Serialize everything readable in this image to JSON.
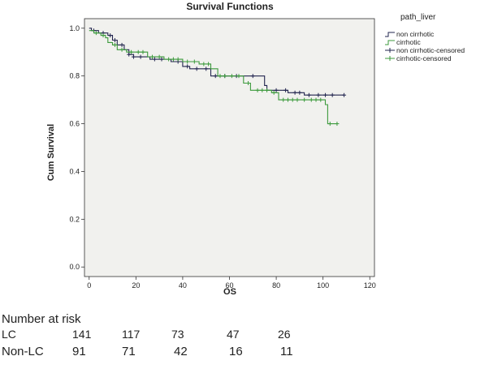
{
  "chart_data": {
    "type": "line",
    "subtype": "kaplan-meier",
    "title": "Survival Functions",
    "xlabel": "OS",
    "ylabel": "Cum Survival",
    "xlim": [
      -2,
      122
    ],
    "ylim": [
      -0.04,
      1.04
    ],
    "x_ticks": [
      0,
      20,
      40,
      60,
      80,
      100,
      120
    ],
    "y_ticks": [
      0.0,
      0.2,
      0.4,
      0.6,
      0.8,
      1.0
    ],
    "legend_title": "path_liver",
    "legend_position": "right",
    "legend": [
      {
        "label": "non cirrhotic",
        "kind": "line",
        "color": "#22254f"
      },
      {
        "label": "cirrhotic",
        "kind": "line",
        "color": "#3c9a3c"
      },
      {
        "label": "non cirrhotic-censored",
        "kind": "plus",
        "color": "#22254f"
      },
      {
        "label": "cirrhotic-censored",
        "kind": "plus",
        "color": "#3c9a3c"
      }
    ],
    "series": [
      {
        "name": "non cirrhotic",
        "color": "#22254f",
        "steps": [
          [
            0,
            1.0
          ],
          [
            1,
            0.99
          ],
          [
            4,
            0.98
          ],
          [
            8,
            0.97
          ],
          [
            10,
            0.95
          ],
          [
            12,
            0.93
          ],
          [
            15,
            0.91
          ],
          [
            17,
            0.89
          ],
          [
            19,
            0.88
          ],
          [
            26,
            0.87
          ],
          [
            35,
            0.86
          ],
          [
            40,
            0.84
          ],
          [
            43,
            0.83
          ],
          [
            52,
            0.8
          ],
          [
            75,
            0.76
          ],
          [
            76,
            0.74
          ],
          [
            85,
            0.73
          ],
          [
            92,
            0.72
          ],
          [
            109,
            0.72
          ]
        ],
        "censored": [
          [
            2,
            0.99
          ],
          [
            6,
            0.98
          ],
          [
            9,
            0.97
          ],
          [
            11,
            0.95
          ],
          [
            14,
            0.93
          ],
          [
            17,
            0.89
          ],
          [
            19,
            0.88
          ],
          [
            22,
            0.88
          ],
          [
            28,
            0.87
          ],
          [
            31,
            0.87
          ],
          [
            38,
            0.86
          ],
          [
            42,
            0.84
          ],
          [
            46,
            0.83
          ],
          [
            50,
            0.83
          ],
          [
            54,
            0.8
          ],
          [
            58,
            0.8
          ],
          [
            63,
            0.8
          ],
          [
            70,
            0.8
          ],
          [
            80,
            0.74
          ],
          [
            84,
            0.74
          ],
          [
            88,
            0.73
          ],
          [
            90,
            0.73
          ],
          [
            94,
            0.72
          ],
          [
            98,
            0.72
          ],
          [
            101,
            0.72
          ],
          [
            104,
            0.72
          ],
          [
            109,
            0.72
          ]
        ]
      },
      {
        "name": "cirrhotic",
        "color": "#3c9a3c",
        "steps": [
          [
            0,
            0.99
          ],
          [
            2,
            0.98
          ],
          [
            5,
            0.97
          ],
          [
            7,
            0.96
          ],
          [
            8,
            0.94
          ],
          [
            10,
            0.93
          ],
          [
            12,
            0.91
          ],
          [
            16,
            0.9
          ],
          [
            25,
            0.88
          ],
          [
            32,
            0.87
          ],
          [
            40,
            0.86
          ],
          [
            47,
            0.85
          ],
          [
            52,
            0.83
          ],
          [
            55,
            0.8
          ],
          [
            66,
            0.77
          ],
          [
            69,
            0.74
          ],
          [
            78,
            0.73
          ],
          [
            81,
            0.7
          ],
          [
            101,
            0.68
          ],
          [
            102,
            0.6
          ],
          [
            106,
            0.6
          ]
        ],
        "censored": [
          [
            3,
            0.98
          ],
          [
            6,
            0.97
          ],
          [
            11,
            0.93
          ],
          [
            14,
            0.91
          ],
          [
            18,
            0.9
          ],
          [
            21,
            0.9
          ],
          [
            23,
            0.9
          ],
          [
            27,
            0.88
          ],
          [
            30,
            0.88
          ],
          [
            34,
            0.87
          ],
          [
            36,
            0.87
          ],
          [
            38,
            0.87
          ],
          [
            42,
            0.86
          ],
          [
            45,
            0.86
          ],
          [
            49,
            0.85
          ],
          [
            51,
            0.85
          ],
          [
            56,
            0.8
          ],
          [
            58,
            0.8
          ],
          [
            61,
            0.8
          ],
          [
            64,
            0.8
          ],
          [
            68,
            0.77
          ],
          [
            72,
            0.74
          ],
          [
            74,
            0.74
          ],
          [
            76,
            0.74
          ],
          [
            79,
            0.73
          ],
          [
            83,
            0.7
          ],
          [
            85,
            0.7
          ],
          [
            87,
            0.7
          ],
          [
            89,
            0.7
          ],
          [
            92,
            0.7
          ],
          [
            95,
            0.7
          ],
          [
            97,
            0.7
          ],
          [
            99,
            0.7
          ],
          [
            103,
            0.6
          ],
          [
            106,
            0.6
          ]
        ]
      }
    ]
  },
  "risk_table": {
    "title": "Number at risk",
    "rows": [
      {
        "label": "LC",
        "values": [
          "141",
          "117",
          "73",
          "47",
          "26"
        ]
      },
      {
        "label": "Non-LC",
        "values": [
          "91",
          "71",
          "42",
          "16",
          "11"
        ]
      }
    ]
  }
}
